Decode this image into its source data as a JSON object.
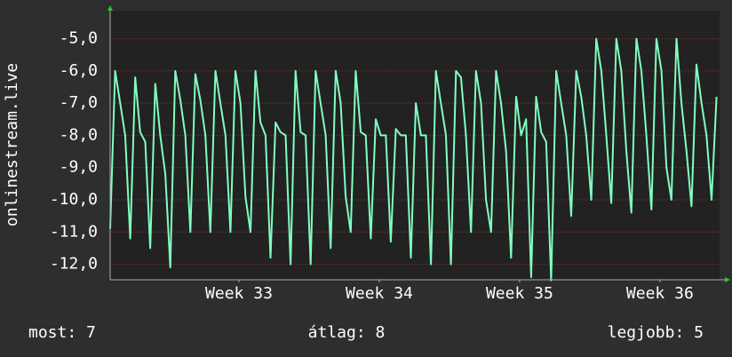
{
  "chart_data": {
    "type": "line",
    "y_label": "onlinestream.live",
    "series": [
      {
        "name": "onlinestream.live",
        "color": "#80ffc0",
        "values": [
          -10.9,
          -6.0,
          -7.0,
          -8.0,
          -11.2,
          -6.2,
          -7.9,
          -8.2,
          -11.5,
          -6.4,
          -8.0,
          -9.2,
          -12.1,
          -6.0,
          -6.9,
          -8.0,
          -11.0,
          -6.1,
          -6.9,
          -8.0,
          -11.0,
          -6.0,
          -7.0,
          -8.0,
          -11.0,
          -6.0,
          -7.0,
          -9.9,
          -11.0,
          -6.0,
          -7.6,
          -8.0,
          -11.8,
          -7.6,
          -7.9,
          -8.0,
          -12.0,
          -6.0,
          -7.9,
          -8.0,
          -12.0,
          -6.0,
          -7.0,
          -8.0,
          -11.5,
          -6.0,
          -7.0,
          -9.9,
          -11.0,
          -6.0,
          -7.9,
          -8.0,
          -11.2,
          -7.5,
          -8.0,
          -8.0,
          -11.3,
          -7.8,
          -8.0,
          -8.0,
          -11.8,
          -7.0,
          -8.0,
          -8.0,
          -12.0,
          -6.0,
          -7.0,
          -8.0,
          -12.0,
          -6.0,
          -6.2,
          -8.0,
          -11.0,
          -6.0,
          -7.0,
          -10.0,
          -11.0,
          -6.0,
          -7.0,
          -8.5,
          -11.8,
          -6.8,
          -8.0,
          -7.5,
          -12.4,
          -6.8,
          -7.9,
          -8.2,
          -12.5,
          -6.0,
          -7.0,
          -8.0,
          -10.5,
          -6.0,
          -6.8,
          -8.0,
          -10.0,
          -5.0,
          -6.0,
          -8.0,
          -10.1,
          -5.0,
          -6.0,
          -8.5,
          -10.4,
          -5.0,
          -6.0,
          -8.0,
          -10.3,
          -5.0,
          -6.0,
          -9.0,
          -10.0,
          -5.0,
          -7.0,
          -8.5,
          -10.2,
          -5.8,
          -7.0,
          -8.0,
          -10.0,
          -6.8
        ]
      }
    ],
    "xlim": [
      0,
      121.6
    ],
    "xticks": [
      {
        "value": 25.7,
        "label": "Week 33"
      },
      {
        "value": 53.7,
        "label": "Week 34"
      },
      {
        "value": 81.7,
        "label": "Week 35"
      },
      {
        "value": 109.7,
        "label": "Week 36"
      }
    ],
    "ylim": [
      -12.48,
      -4.13
    ],
    "yticks": [
      {
        "value": -5,
        "label": "-5,0"
      },
      {
        "value": -6,
        "label": "-6,0"
      },
      {
        "value": -7,
        "label": "-7,0"
      },
      {
        "value": -8,
        "label": "-8,0"
      },
      {
        "value": -9,
        "label": "-9,0"
      },
      {
        "value": -10,
        "label": "-10,0"
      },
      {
        "value": -11,
        "label": "-11,0"
      },
      {
        "value": -12,
        "label": "-12,0"
      }
    ],
    "grid": true,
    "stats": [
      "most: 7",
      "átlag: 8",
      "legjobb: 5"
    ]
  }
}
